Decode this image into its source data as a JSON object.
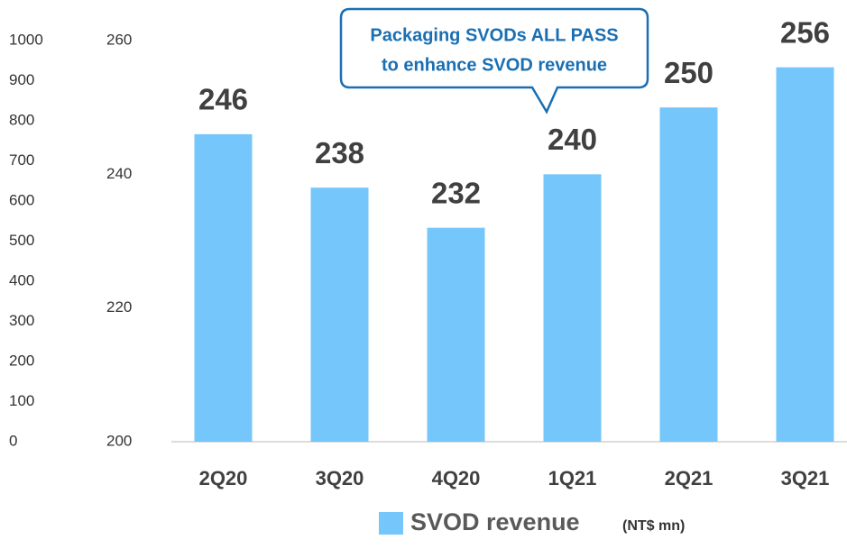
{
  "chart_data": {
    "type": "bar",
    "categories": [
      "2Q20",
      "3Q20",
      "4Q20",
      "1Q21",
      "2Q21",
      "3Q21"
    ],
    "series": [
      {
        "name": "SVOD revenue",
        "color": "#75c6fb",
        "axis": "y2",
        "values": [
          246,
          238,
          232,
          240,
          250,
          256
        ]
      }
    ],
    "ylim": [
      0,
      1000
    ],
    "yticks": [
      0,
      100,
      200,
      300,
      400,
      500,
      600,
      700,
      800,
      900,
      1000
    ],
    "y2lim": [
      200,
      260
    ],
    "y2ticks": [
      200,
      220,
      240,
      260
    ],
    "annotation": [
      "Packaging SVODs ALL PASS",
      "to enhance SVOD revenue"
    ],
    "legend_unit": "(NT$ mn)",
    "legend": "bottom"
  }
}
